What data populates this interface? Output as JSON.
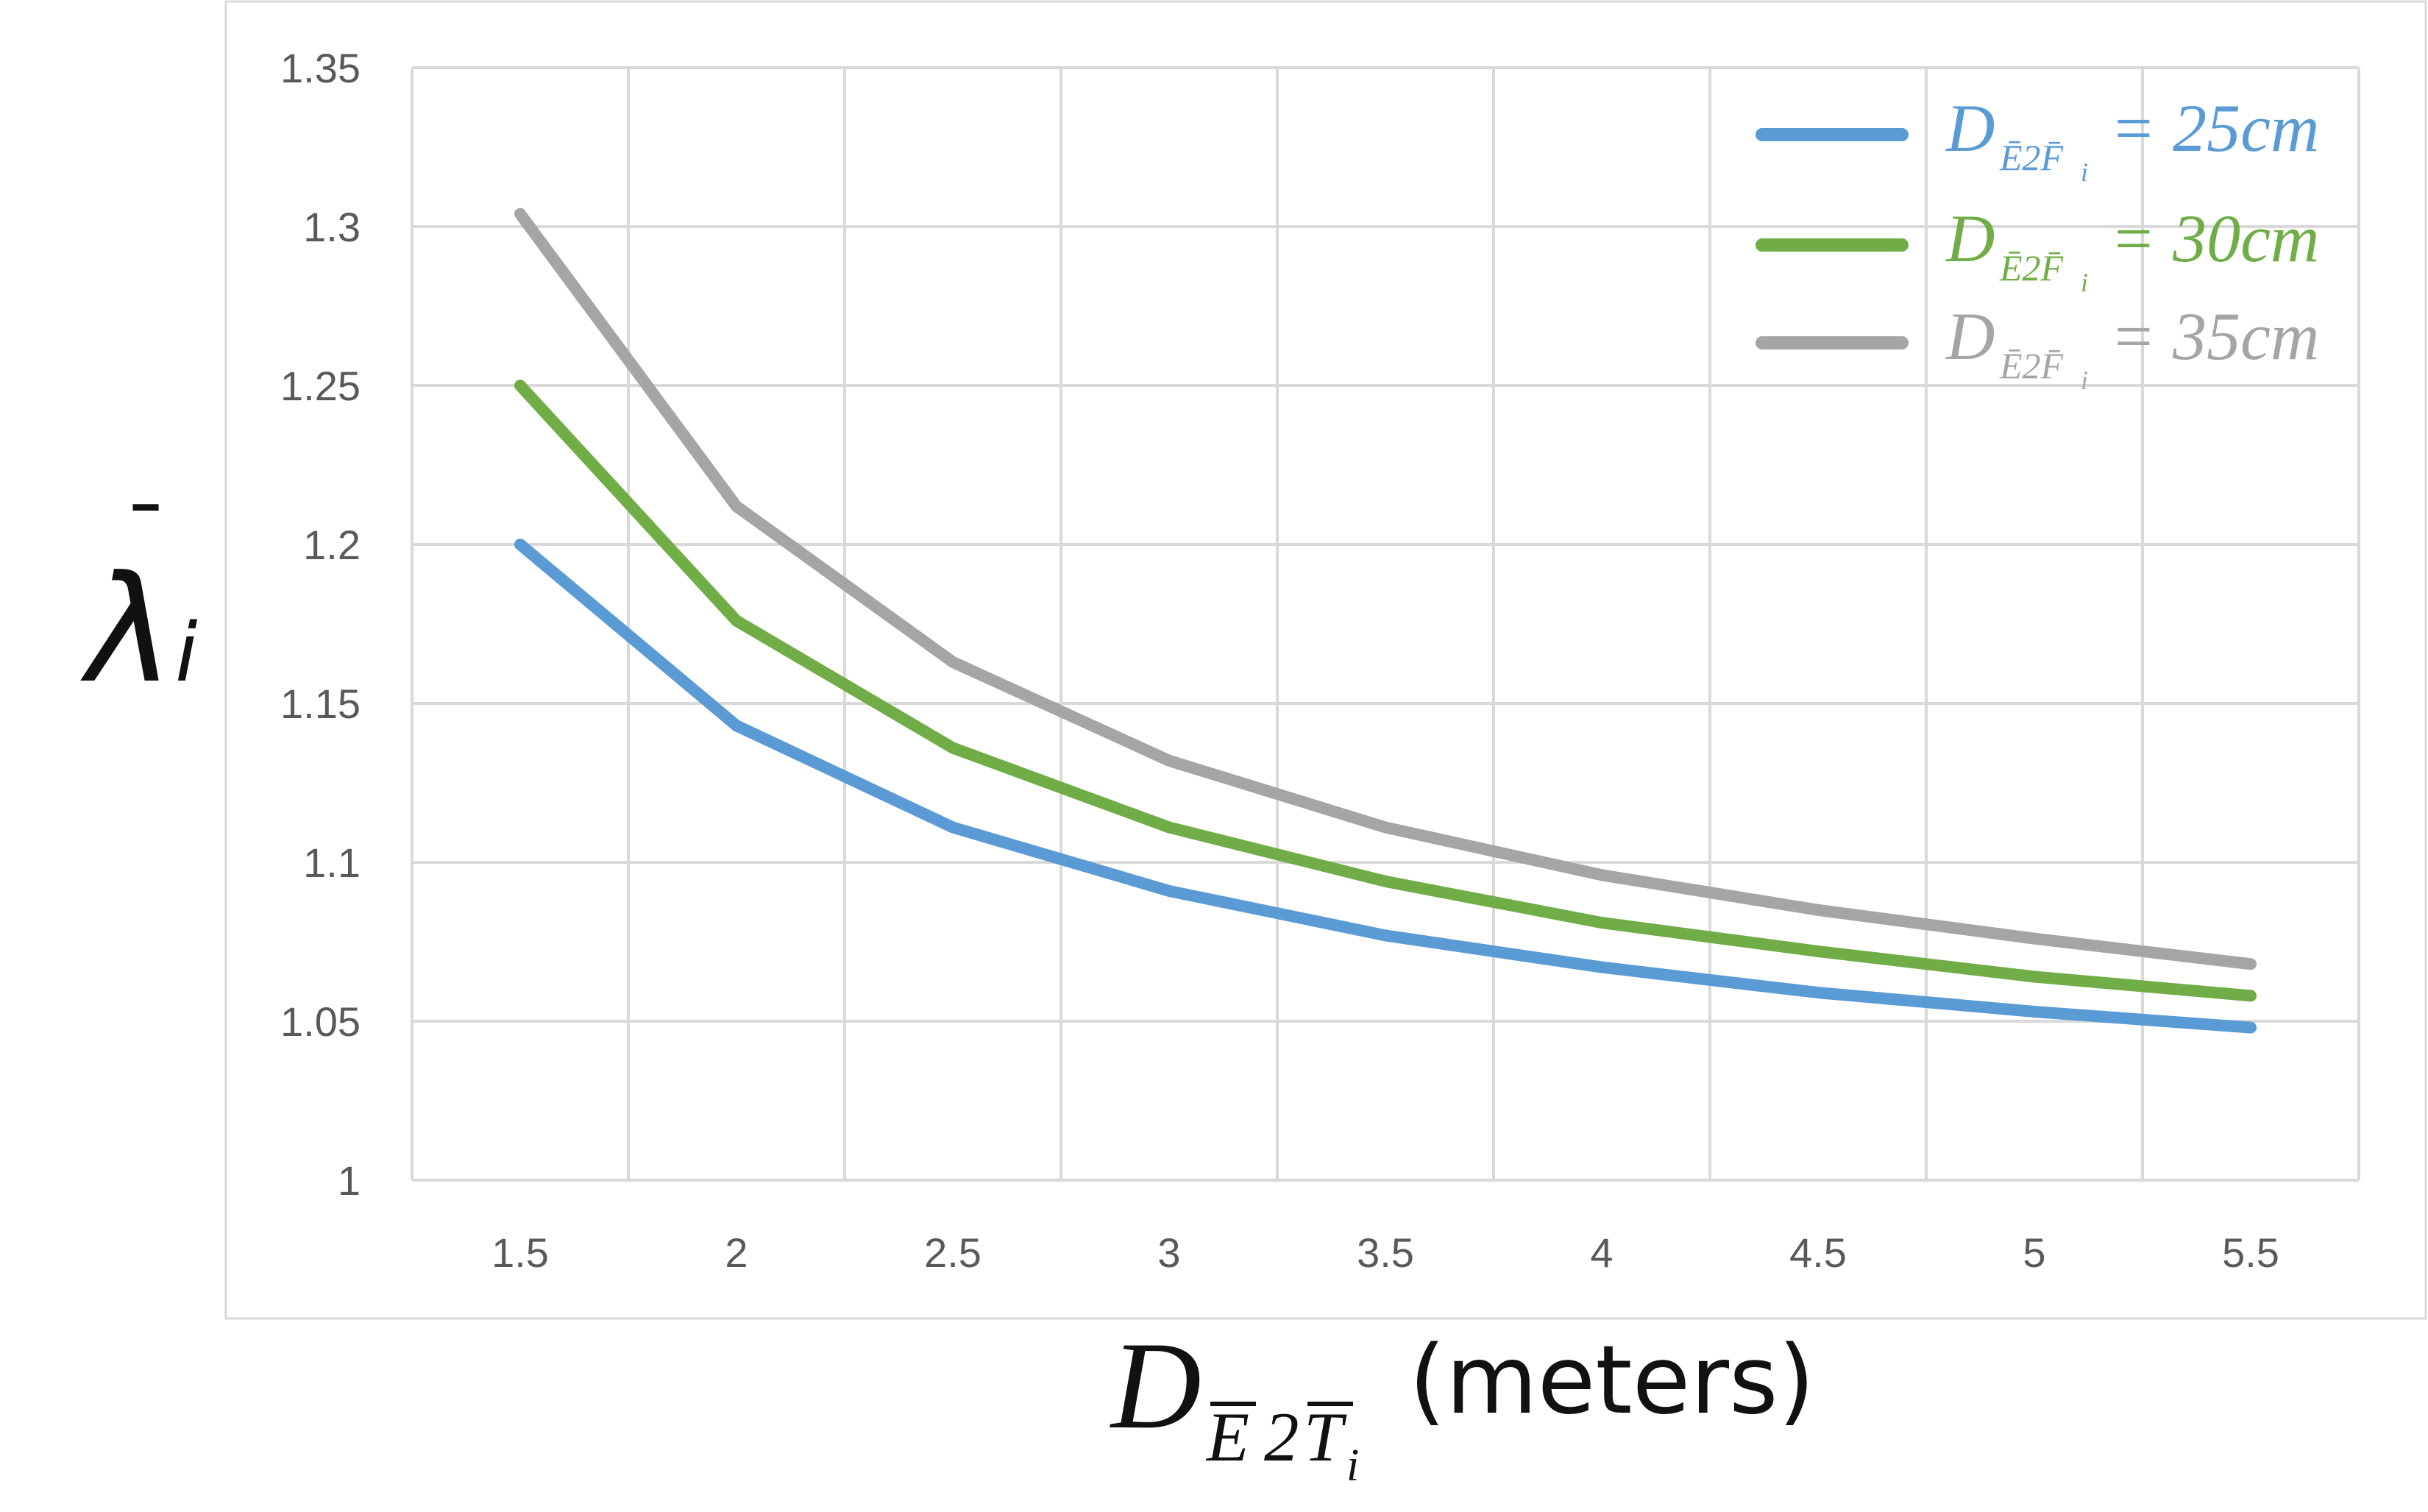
{
  "chart_data": {
    "type": "line",
    "x": [
      1.5,
      2,
      2.5,
      3,
      3.5,
      4,
      4.5,
      5,
      5.5
    ],
    "x_tick_labels": [
      "1.5",
      "2",
      "2.5",
      "3",
      "3.5",
      "4",
      "4.5",
      "5",
      "5.5"
    ],
    "y_tick_labels": [
      "1",
      "1.05",
      "1.1",
      "1.15",
      "1.2",
      "1.25",
      "1.3",
      "1.35"
    ],
    "ylim": [
      1,
      1.35
    ],
    "grid": true,
    "legend_position": "top-right",
    "ylabel": {
      "symbol": "λ",
      "accent": "¯",
      "subscript": "i"
    },
    "xlabel": {
      "main": "D",
      "subscript_parts": [
        "E",
        "2",
        "T",
        "i"
      ],
      "unit": "(meters)"
    },
    "series": [
      {
        "legend": {
          "main": "D",
          "sub": "Ē2F̄",
          "sub_i": "i",
          "value": "= 25cm"
        },
        "color": "#5b9bd5",
        "values": [
          1.2,
          1.143,
          1.111,
          1.091,
          1.077,
          1.067,
          1.059,
          1.053,
          1.048
        ]
      },
      {
        "legend": {
          "main": "D",
          "sub": "Ē2F̄",
          "sub_i": "i",
          "value": "= 30cm"
        },
        "color": "#70ad47",
        "values": [
          1.25,
          1.176,
          1.136,
          1.111,
          1.094,
          1.081,
          1.072,
          1.064,
          1.058
        ]
      },
      {
        "legend": {
          "main": "D",
          "sub": "Ē2F̄",
          "sub_i": "i",
          "value": "= 35cm"
        },
        "color": "#a5a5a5",
        "values": [
          1.304,
          1.212,
          1.163,
          1.132,
          1.111,
          1.096,
          1.085,
          1.076,
          1.068
        ]
      }
    ]
  }
}
